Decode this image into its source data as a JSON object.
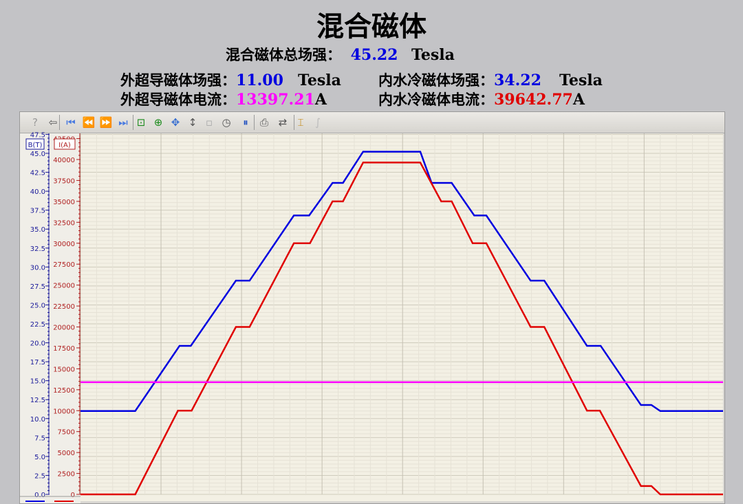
{
  "title": "混合磁体",
  "total": {
    "label": "混合磁体总场强：",
    "value": "45.22",
    "unit": "Tesla"
  },
  "outer_field": {
    "label": "外超导磁体场强：",
    "value": "11.00",
    "unit": "Tesla"
  },
  "inner_field": {
    "label": "内水冷磁体场强：",
    "value": "34.22",
    "unit": "Tesla"
  },
  "outer_current": {
    "label": "外超导磁体电流：",
    "value": "13397.21",
    "unit": "A"
  },
  "inner_current": {
    "label": "内水冷磁体电流：",
    "value": "39642.77",
    "unit": "A"
  },
  "colors": {
    "field": "#0000e0",
    "current_inner": "#e00000",
    "current_outer": "#ff00ff",
    "plot_bg": "#f3f0e4"
  },
  "toolbar": [
    "help-icon",
    "export-icon",
    "first-icon",
    "rewind-icon",
    "forward-icon",
    "last-icon",
    "zoom-box-icon",
    "zoom-in-icon",
    "pan-icon",
    "scale-y-icon",
    "one-to-one-icon",
    "clock-icon",
    "pause-icon",
    "print-icon",
    "swap-axis-icon",
    "fit-icon",
    "function-icon"
  ],
  "chart_data": {
    "type": "line",
    "xlim": [
      0,
      7.98
    ],
    "grid": true,
    "axes": [
      {
        "label": "B(T)",
        "ylim": [
          0,
          47.5
        ],
        "ticks": [
          "0.0",
          "2.5",
          "5.0",
          "7.5",
          "10.0",
          "12.5",
          "15.0",
          "17.5",
          "20.0",
          "22.5",
          "25.0",
          "27.5",
          "30.0",
          "32.5",
          "35.0",
          "37.5",
          "40.0",
          "42.5",
          "45.0",
          "47.5"
        ]
      },
      {
        "label": "I(A)",
        "ylim": [
          0,
          42500
        ],
        "ticks": [
          "0",
          "2500",
          "5000",
          "7500",
          "10000",
          "12500",
          "15000",
          "17500",
          "20000",
          "22500",
          "25000",
          "27500",
          "30000",
          "32500",
          "35000",
          "37500",
          "40000",
          "42500"
        ]
      }
    ],
    "series": [
      {
        "axis": 0,
        "color": "#0000e0",
        "x": [
          0,
          0.68,
          1.23,
          1.37,
          1.93,
          2.1,
          2.65,
          2.84,
          3.13,
          3.26,
          3.51,
          4.22,
          4.36,
          4.61,
          4.89,
          5.04,
          5.59,
          5.76,
          6.29,
          6.46,
          6.96,
          7.09,
          7.2,
          7.98
        ],
        "y": [
          11.0,
          11.0,
          19.6,
          19.6,
          28.2,
          28.2,
          36.8,
          36.8,
          41.1,
          41.1,
          45.22,
          45.22,
          41.1,
          41.1,
          36.8,
          36.8,
          28.2,
          28.2,
          19.6,
          19.6,
          11.8,
          11.8,
          11.0,
          11.0
        ]
      },
      {
        "axis": 1,
        "color": "#e00000",
        "x": [
          0,
          0.68,
          1.21,
          1.38,
          1.93,
          2.1,
          2.65,
          2.85,
          3.13,
          3.26,
          3.51,
          4.22,
          4.48,
          4.61,
          4.87,
          5.04,
          5.59,
          5.76,
          6.29,
          6.45,
          6.96,
          7.09,
          7.2,
          7.98
        ],
        "y": [
          0,
          0,
          10000,
          10000,
          20000,
          20000,
          30000,
          30000,
          35000,
          35000,
          39642,
          39642,
          35000,
          35000,
          30000,
          30000,
          20000,
          20000,
          10000,
          10000,
          1000,
          1000,
          0,
          0
        ]
      },
      {
        "axis": 1,
        "color": "#ff00ff",
        "x": [
          0,
          7.98
        ],
        "y": [
          13397,
          13397
        ]
      }
    ]
  }
}
